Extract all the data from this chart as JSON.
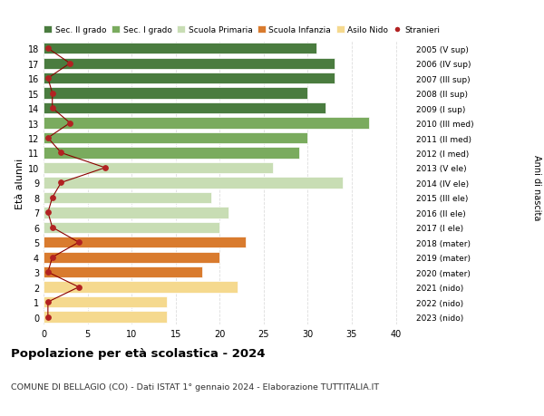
{
  "ages": [
    18,
    17,
    16,
    15,
    14,
    13,
    12,
    11,
    10,
    9,
    8,
    7,
    6,
    5,
    4,
    3,
    2,
    1,
    0
  ],
  "bar_values": [
    31,
    33,
    33,
    30,
    32,
    37,
    30,
    29,
    26,
    34,
    19,
    21,
    20,
    23,
    20,
    18,
    22,
    14,
    14
  ],
  "bar_colors": [
    "#4a7c3f",
    "#4a7c3f",
    "#4a7c3f",
    "#4a7c3f",
    "#4a7c3f",
    "#7aab5e",
    "#7aab5e",
    "#7aab5e",
    "#c8ddb4",
    "#c8ddb4",
    "#c8ddb4",
    "#c8ddb4",
    "#c8ddb4",
    "#d97b2e",
    "#d97b2e",
    "#d97b2e",
    "#f5d98e",
    "#f5d98e",
    "#f5d98e"
  ],
  "stranieri_values": [
    0.5,
    3,
    0.5,
    1,
    1,
    3,
    0.5,
    2,
    7,
    2,
    1,
    0.5,
    1,
    4,
    1,
    0.5,
    4,
    0.5,
    0.5
  ],
  "right_labels": [
    "2005 (V sup)",
    "2006 (IV sup)",
    "2007 (III sup)",
    "2008 (II sup)",
    "2009 (I sup)",
    "2010 (III med)",
    "2011 (II med)",
    "2012 (I med)",
    "2013 (V ele)",
    "2014 (IV ele)",
    "2015 (III ele)",
    "2016 (II ele)",
    "2017 (I ele)",
    "2018 (mater)",
    "2019 (mater)",
    "2020 (mater)",
    "2021 (nido)",
    "2022 (nido)",
    "2023 (nido)"
  ],
  "legend_labels": [
    "Sec. II grado",
    "Sec. I grado",
    "Scuola Primaria",
    "Scuola Infanzia",
    "Asilo Nido",
    "Stranieri"
  ],
  "legend_colors": [
    "#4a7c3f",
    "#7aab5e",
    "#c8ddb4",
    "#d97b2e",
    "#f5d98e",
    "#b22222"
  ],
  "ylabel_left": "Età alunni",
  "ylabel_right": "Anni di nascita",
  "title": "Popolazione per età scolastica - 2024",
  "subtitle": "COMUNE DI BELLAGIO (CO) - Dati ISTAT 1° gennaio 2024 - Elaborazione TUTTITALIA.IT",
  "xlim": [
    0,
    42
  ],
  "xticks": [
    0,
    5,
    10,
    15,
    20,
    25,
    30,
    35,
    40
  ],
  "bar_height": 0.75,
  "bg_color": "#ffffff",
  "grid_color": "#dddddd"
}
